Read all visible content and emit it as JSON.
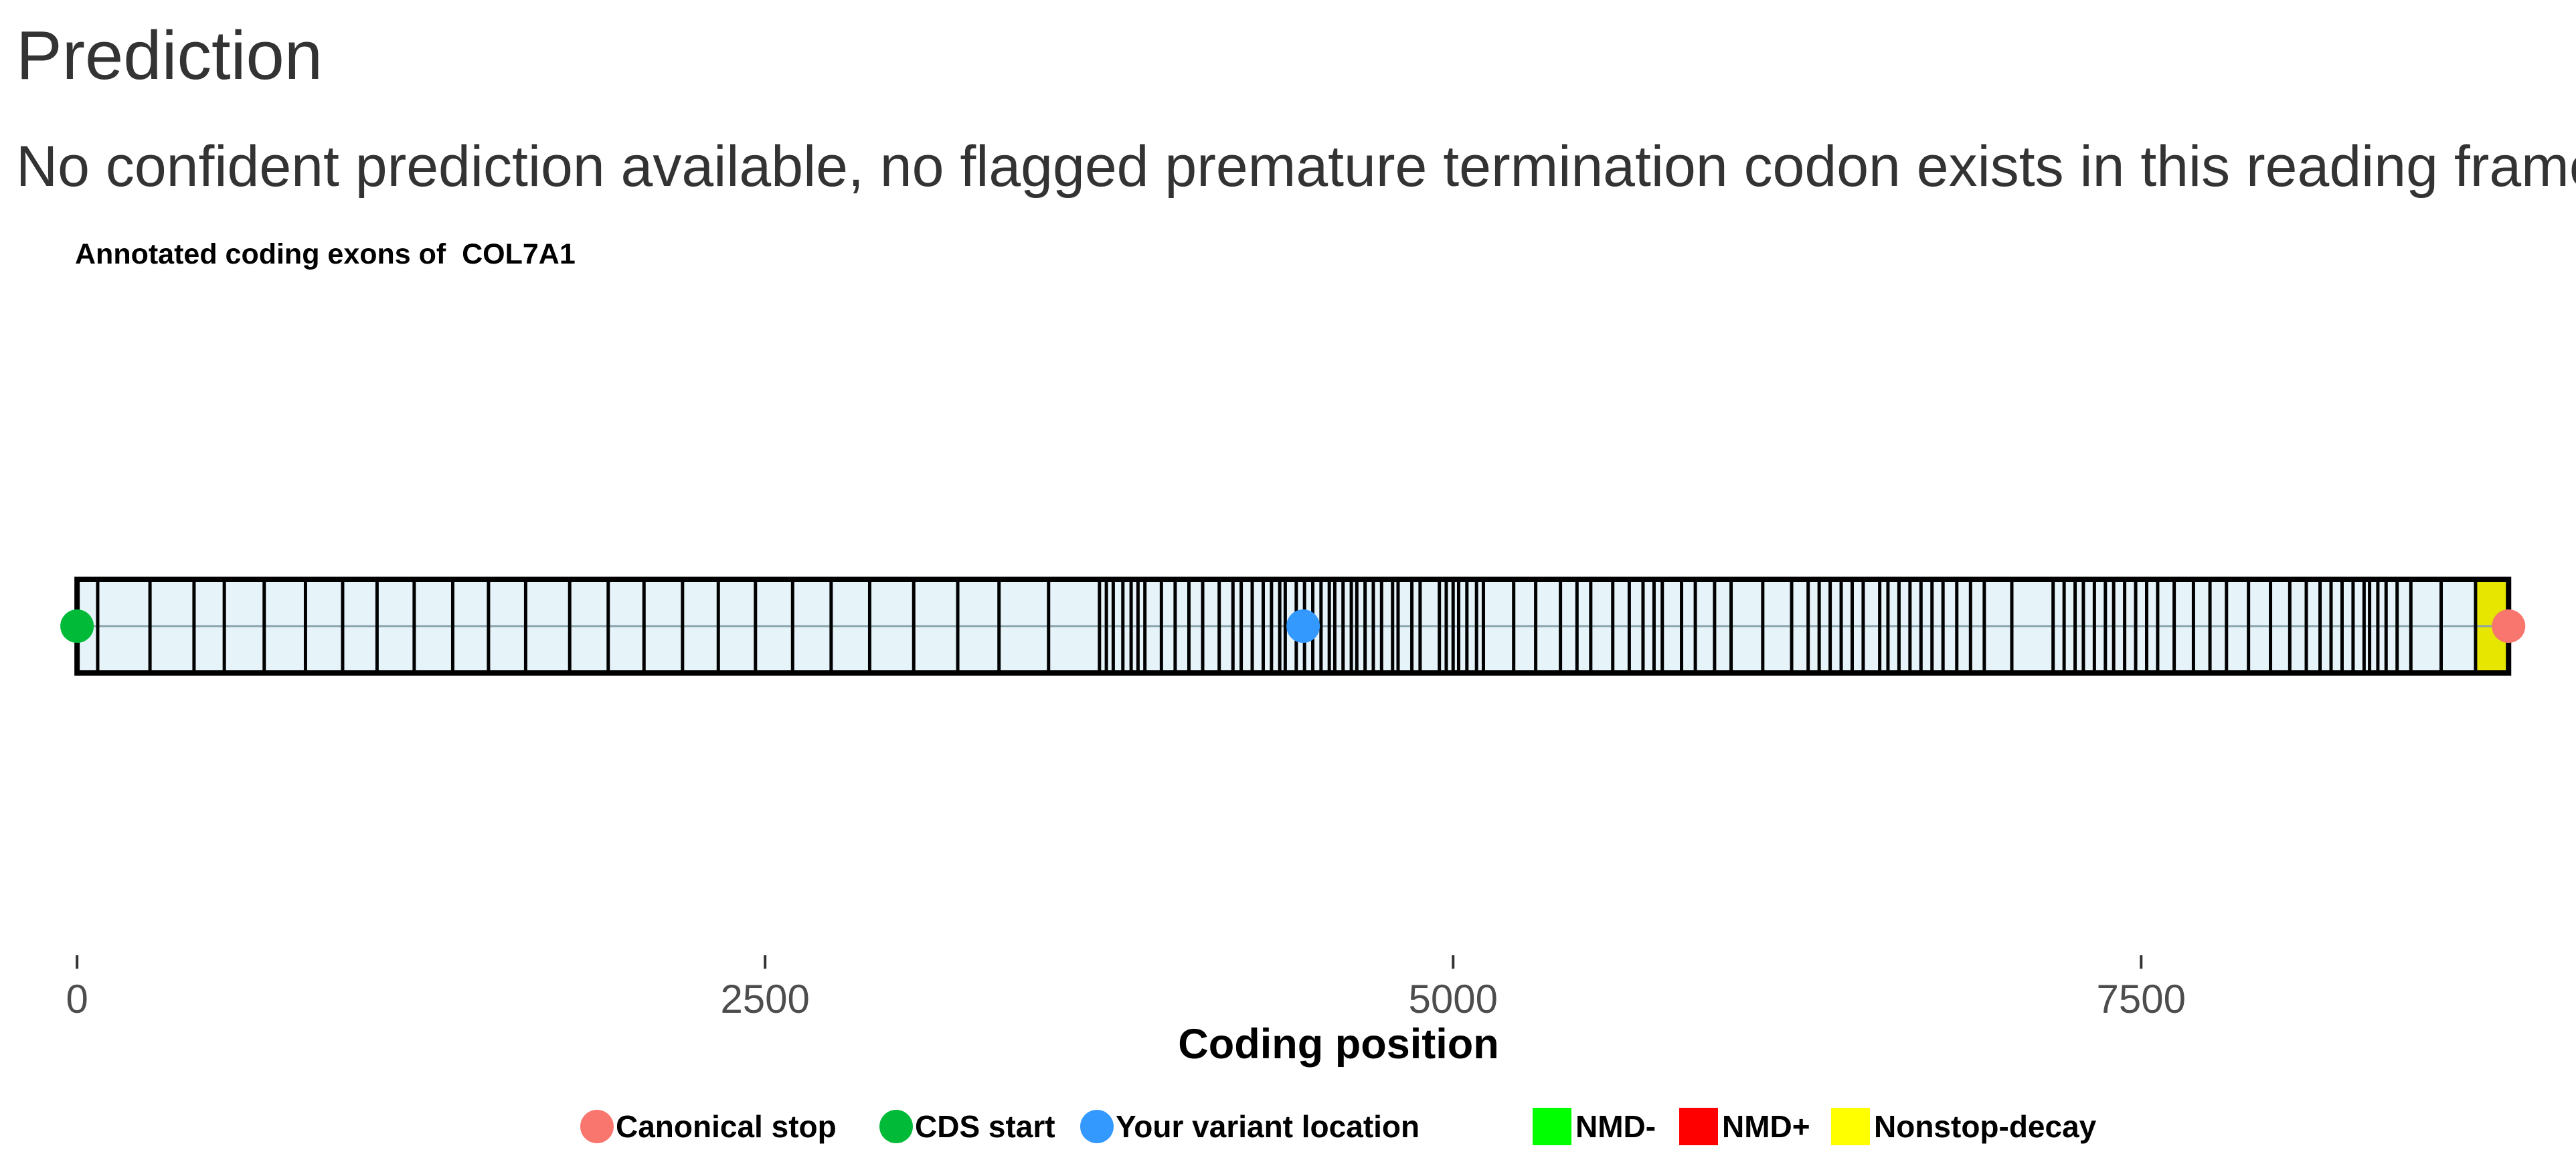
{
  "page": {
    "heading": "Prediction",
    "message": "No confident prediction available, no flagged premature termination codon exists in this reading frame"
  },
  "colors": {
    "exon_fill": "#e6f4fa",
    "exon_stroke": "#000000",
    "nonstop_fill": "#e6e600",
    "canonical_stop": "#f8766d",
    "cds_start": "#00ba38",
    "variant": "#3399ff",
    "nmd_minus": "#00ff00",
    "nmd_plus": "#ff0000",
    "nonstop_decay": "#ffff00",
    "axis_text": "#4d4d4d"
  },
  "chart_data": {
    "type": "scatter",
    "title": "Annotated coding exons of  COL7A1",
    "gene": "COL7A1",
    "xlabel": "Coding position",
    "ylabel": "",
    "xlim": [
      -280,
      9080
    ],
    "x_ticks": [
      0,
      2500,
      5000,
      7500
    ],
    "x_tick_labels": [
      "0",
      "2500",
      "5000",
      "7500"
    ],
    "grid": false,
    "cds_start": 0,
    "canonical_stop": 8835,
    "variant_position": 4455,
    "nonstop_decay_region": [
      8715,
      8835
    ],
    "exon_boundaries": [
      0,
      75,
      265,
      425,
      535,
      680,
      830,
      965,
      1090,
      1225,
      1365,
      1495,
      1630,
      1790,
      1930,
      2060,
      2200,
      2330,
      2465,
      2600,
      2740,
      2880,
      3040,
      3200,
      3350,
      3530,
      3715,
      3740,
      3765,
      3800,
      3830,
      3855,
      3880,
      3940,
      3990,
      4040,
      4090,
      4150,
      4200,
      4230,
      4270,
      4310,
      4340,
      4370,
      4390,
      4430,
      4460,
      4490,
      4520,
      4550,
      4570,
      4600,
      4630,
      4650,
      4680,
      4710,
      4740,
      4780,
      4800,
      4850,
      4880,
      4950,
      4975,
      5000,
      5020,
      5050,
      5085,
      5110,
      5220,
      5300,
      5390,
      5450,
      5500,
      5580,
      5640,
      5690,
      5730,
      5760,
      5830,
      5880,
      5950,
      6010,
      6125,
      6230,
      6290,
      6330,
      6370,
      6410,
      6450,
      6490,
      6550,
      6580,
      6620,
      6660,
      6700,
      6740,
      6780,
      6830,
      6880,
      6930,
      7030,
      7180,
      7220,
      7260,
      7290,
      7330,
      7370,
      7400,
      7440,
      7480,
      7520,
      7560,
      7620,
      7690,
      7750,
      7810,
      7890,
      7970,
      8040,
      8100,
      8150,
      8190,
      8230,
      8270,
      8310,
      8330,
      8360,
      8390,
      8430,
      8480,
      8590,
      8715,
      8835
    ],
    "legend_position": "bottom",
    "legend": [
      {
        "label": "Canonical stop",
        "shape": "circle",
        "color_key": "canonical_stop"
      },
      {
        "label": "CDS start",
        "shape": "circle",
        "color_key": "cds_start"
      },
      {
        "label": "Your variant location",
        "shape": "circle",
        "color_key": "variant"
      },
      {
        "label": "NMD-",
        "shape": "square",
        "color_key": "nmd_minus"
      },
      {
        "label": "NMD+",
        "shape": "square",
        "color_key": "nmd_plus"
      },
      {
        "label": "Nonstop-decay",
        "shape": "square",
        "color_key": "nonstop_decay"
      }
    ]
  }
}
